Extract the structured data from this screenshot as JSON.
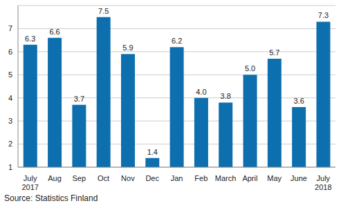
{
  "chart_data": {
    "type": "bar",
    "categories": [
      "July 2017",
      "Aug",
      "Sep",
      "Oct",
      "Nov",
      "Dec",
      "Jan",
      "Feb",
      "March",
      "April",
      "May",
      "June",
      "July 2018"
    ],
    "values": [
      6.3,
      6.6,
      3.7,
      7.5,
      5.9,
      1.4,
      6.2,
      4.0,
      3.8,
      5.0,
      5.7,
      3.6,
      7.3
    ],
    "value_labels": [
      "6.3",
      "6.6",
      "3.7",
      "7.5",
      "5.9",
      "1.4",
      "6.2",
      "4.0",
      "3.8",
      "5.0",
      "5.7",
      "3.6",
      "7.3"
    ],
    "color": "#0e6fae",
    "ylim": [
      1,
      8
    ],
    "yticks": [
      1,
      2,
      3,
      4,
      5,
      6,
      7
    ],
    "grid": true,
    "data_labels": true,
    "source": "Source: Statistics Finland"
  }
}
